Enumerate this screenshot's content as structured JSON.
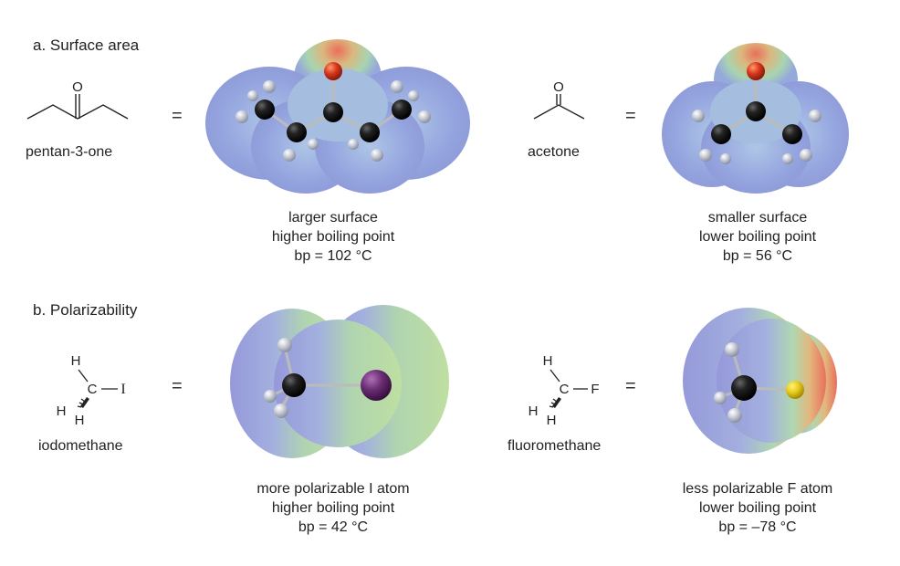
{
  "section_a": {
    "title": "a. Surface area",
    "left": {
      "name": "pentan-3-one",
      "atom_O": "O",
      "equals": "=",
      "caption": [
        "larger surface",
        "higher boiling point",
        "bp = 102 °C"
      ]
    },
    "right": {
      "name": "acetone",
      "atom_O": "O",
      "equals": "=",
      "caption": [
        "smaller surface",
        "lower boiling point",
        "bp = 56 °C"
      ]
    }
  },
  "section_b": {
    "title": "b. Polarizability",
    "left": {
      "name": "iodomethane",
      "atoms": {
        "H_top": "H",
        "C": "C",
        "X": "I",
        "H_left": "H",
        "H_bottom": "H"
      },
      "equals": "=",
      "caption": [
        "more polarizable I atom",
        "higher boiling point",
        "bp = 42 °C"
      ]
    },
    "right": {
      "name": "fluoromethane",
      "atoms": {
        "H_top": "H",
        "C": "C",
        "X": "F",
        "H_left": "H",
        "H_bottom": "H"
      },
      "equals": "=",
      "caption": [
        "less polarizable F atom",
        "lower boiling point",
        "bp = –78 °C"
      ]
    }
  },
  "colors": {
    "surface_blue": "#7f8fd8",
    "surface_green": "#a8d49a",
    "surface_red": "#e8604a",
    "carbon": "#1a1a1a",
    "hydrogen": "#c8ccd6",
    "oxygen": "#d6381e",
    "iodine": "#6a2e74",
    "fluorine": "#e8cc1e"
  }
}
